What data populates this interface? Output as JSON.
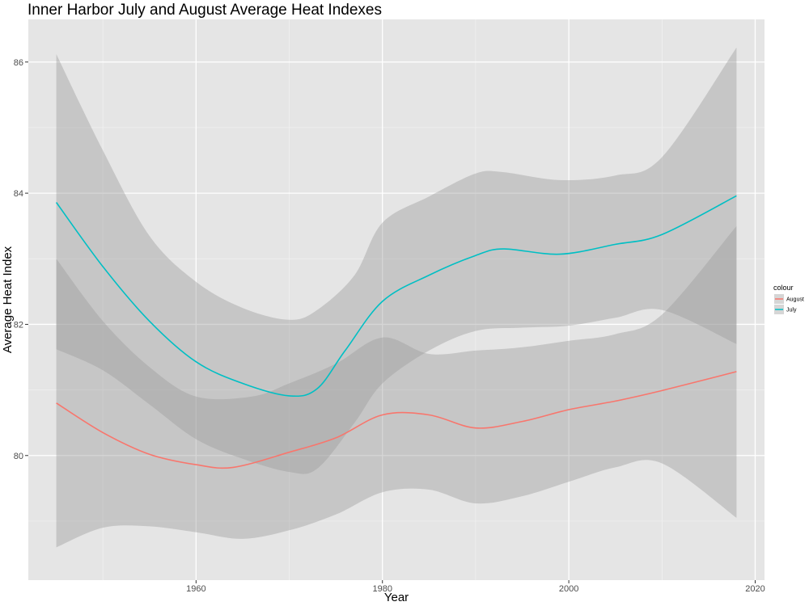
{
  "chart_data": {
    "type": "line",
    "title": "Inner Harbor July and August Average Heat Indexes",
    "xlabel": "Year",
    "ylabel": "Average Heat Index",
    "xlim": [
      1942,
      2021
    ],
    "ylim": [
      78.1,
      86.65
    ],
    "x_ticks": [
      1960,
      1980,
      2000,
      2020
    ],
    "y_ticks": [
      80,
      82,
      84,
      86
    ],
    "grid": true,
    "legend": {
      "title": "colour",
      "placement": "right"
    },
    "series": [
      {
        "name": "August",
        "color": "#F8766D",
        "points": [
          [
            1945,
            80.8
          ],
          [
            1950,
            80.35
          ],
          [
            1955,
            80.02
          ],
          [
            1960,
            79.86
          ],
          [
            1964,
            79.82
          ],
          [
            1970,
            80.05
          ],
          [
            1975,
            80.27
          ],
          [
            1980,
            80.62
          ],
          [
            1985,
            80.62
          ],
          [
            1990,
            80.42
          ],
          [
            1995,
            80.52
          ],
          [
            2000,
            80.7
          ],
          [
            2005,
            80.83
          ],
          [
            2010,
            80.99
          ],
          [
            2018,
            81.28
          ]
        ],
        "band_upper": [
          [
            1945,
            83.0
          ],
          [
            1950,
            82.05
          ],
          [
            1955,
            81.35
          ],
          [
            1960,
            80.9
          ],
          [
            1966,
            80.9
          ],
          [
            1970,
            81.1
          ],
          [
            1975,
            81.4
          ],
          [
            1980,
            81.8
          ],
          [
            1985,
            81.55
          ],
          [
            1990,
            81.6
          ],
          [
            1995,
            81.65
          ],
          [
            2000,
            81.75
          ],
          [
            2005,
            81.85
          ],
          [
            2010,
            82.15
          ],
          [
            2018,
            83.5
          ]
        ],
        "band_lower": [
          [
            1945,
            78.6
          ],
          [
            1950,
            78.9
          ],
          [
            1955,
            78.92
          ],
          [
            1960,
            78.83
          ],
          [
            1965,
            78.73
          ],
          [
            1970,
            78.86
          ],
          [
            1975,
            79.1
          ],
          [
            1980,
            79.44
          ],
          [
            1985,
            79.48
          ],
          [
            1990,
            79.27
          ],
          [
            1995,
            79.38
          ],
          [
            2000,
            79.6
          ],
          [
            2005,
            79.82
          ],
          [
            2010,
            79.88
          ],
          [
            2018,
            79.05
          ]
        ]
      },
      {
        "name": "July",
        "color": "#00BFC4",
        "points": [
          [
            1945,
            83.86
          ],
          [
            1950,
            82.88
          ],
          [
            1955,
            82.05
          ],
          [
            1960,
            81.43
          ],
          [
            1965,
            81.1
          ],
          [
            1970,
            80.91
          ],
          [
            1973,
            81.02
          ],
          [
            1976,
            81.6
          ],
          [
            1980,
            82.35
          ],
          [
            1985,
            82.75
          ],
          [
            1990,
            83.05
          ],
          [
            1993,
            83.15
          ],
          [
            1999,
            83.07
          ],
          [
            2005,
            83.22
          ],
          [
            2010,
            83.37
          ],
          [
            2018,
            83.96
          ]
        ],
        "band_upper": [
          [
            1945,
            86.12
          ],
          [
            1950,
            84.65
          ],
          [
            1955,
            83.35
          ],
          [
            1960,
            82.65
          ],
          [
            1965,
            82.25
          ],
          [
            1970,
            82.07
          ],
          [
            1973,
            82.22
          ],
          [
            1977,
            82.75
          ],
          [
            1980,
            83.55
          ],
          [
            1985,
            83.95
          ],
          [
            1990,
            84.3
          ],
          [
            1993,
            84.32
          ],
          [
            1999,
            84.2
          ],
          [
            2005,
            84.27
          ],
          [
            2010,
            84.55
          ],
          [
            2018,
            86.22
          ]
        ],
        "band_lower": [
          [
            1945,
            81.62
          ],
          [
            1950,
            81.3
          ],
          [
            1955,
            80.78
          ],
          [
            1960,
            80.25
          ],
          [
            1965,
            79.95
          ],
          [
            1970,
            79.75
          ],
          [
            1973,
            79.8
          ],
          [
            1977,
            80.5
          ],
          [
            1980,
            81.1
          ],
          [
            1985,
            81.6
          ],
          [
            1990,
            81.9
          ],
          [
            1995,
            81.95
          ],
          [
            2000,
            81.98
          ],
          [
            2005,
            82.1
          ],
          [
            2010,
            82.22
          ],
          [
            2018,
            81.7
          ]
        ]
      }
    ]
  }
}
